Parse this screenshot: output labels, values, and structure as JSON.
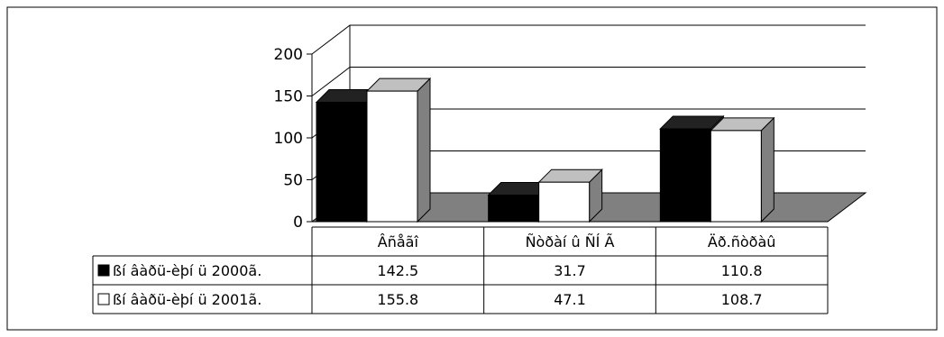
{
  "chart_data": {
    "type": "bar",
    "three_d": true,
    "categories": [
      "Âñåãî",
      "Ñòðàí û ÑÍ Ã",
      "Äð.ñòðàû"
    ],
    "series": [
      {
        "name": "ßí âàðü-èþí ü 2000ã.",
        "values": [
          142.5,
          31.7,
          110.8
        ],
        "color": "#000000"
      },
      {
        "name": "ßí âàðü-èþí ü 2001ã.",
        "values": [
          155.8,
          47.1,
          108.7
        ],
        "color": "#ffffff"
      }
    ],
    "y_ticks": [
      "0",
      "50",
      "100",
      "150",
      "200"
    ],
    "ylim": [
      0,
      200
    ],
    "grid": true,
    "legend": "data-table",
    "data_table": {
      "rows": [
        {
          "label": "ßí âàðü-èþí ü 2000ã.",
          "cells": [
            "142.5",
            "31.7",
            "110.8"
          ]
        },
        {
          "label": "ßí âàðü-èþí ü 2001ã.",
          "cells": [
            "155.8",
            "47.1",
            "108.7"
          ]
        }
      ]
    },
    "colors": {
      "floor": "#808080",
      "bar_side": "#808080",
      "bar_top_dark": "#222222",
      "bar_top_light": "#c0c0c0"
    }
  }
}
